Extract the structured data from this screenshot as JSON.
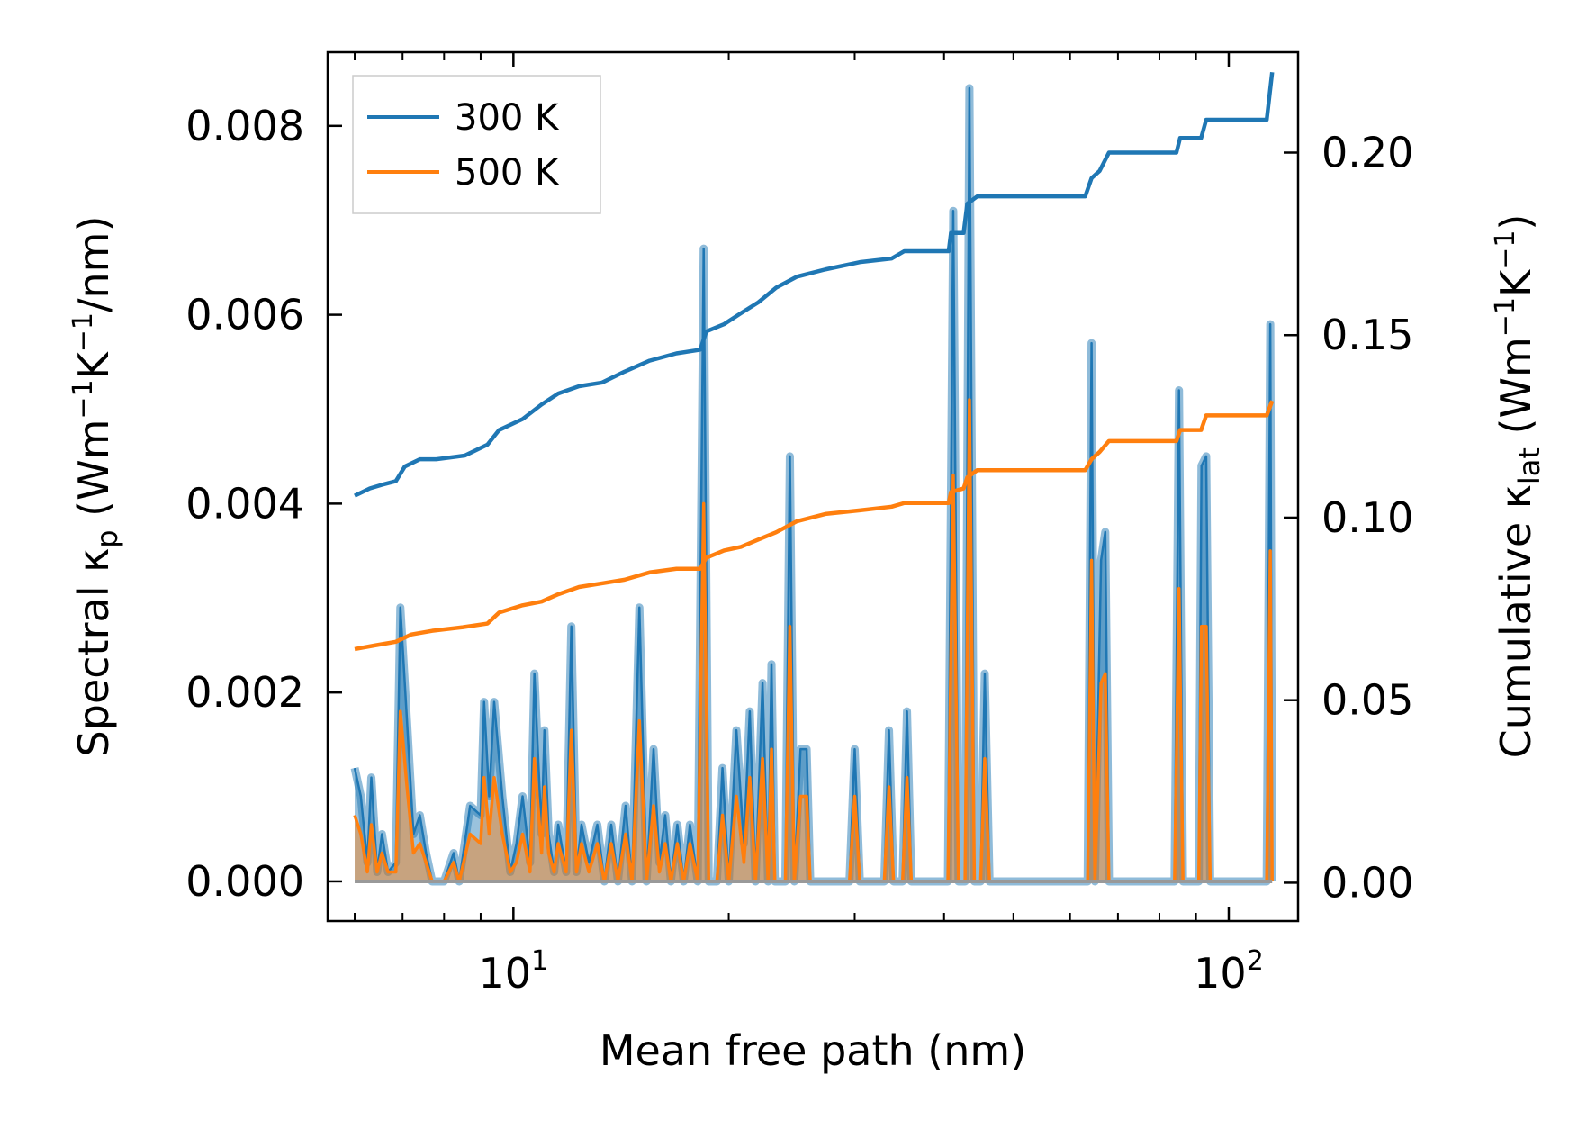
{
  "chart_data": {
    "type": "line",
    "x_scale": "log",
    "xlim": [
      5.5,
      125
    ],
    "ylim_left": [
      -0.00042,
      0.00878
    ],
    "ylim_right": [
      -0.0105,
      0.2275
    ],
    "xlabel": "Mean free path (nm)",
    "ylabel_left": {
      "prefix": "Spectral κ",
      "sub": "p",
      "mid": " (Wm",
      "sup1": "−1",
      "k": "K",
      "sup2": "−1",
      "suffix": "/nm)"
    },
    "ylabel_right": {
      "prefix": "Cumulative κ",
      "sub": "lat",
      "mid": " (Wm",
      "sup1": "−1",
      "k": "K",
      "sup2": "−1",
      "suffix": ")"
    },
    "x_ticks": [
      {
        "value": 10,
        "base": "10",
        "exp": "1"
      },
      {
        "value": 100,
        "base": "10",
        "exp": "2"
      }
    ],
    "y_left_ticks": [
      {
        "value": 0.0,
        "label": "0.000"
      },
      {
        "value": 0.002,
        "label": "0.002"
      },
      {
        "value": 0.004,
        "label": "0.004"
      },
      {
        "value": 0.006,
        "label": "0.006"
      },
      {
        "value": 0.008,
        "label": "0.008"
      }
    ],
    "y_right_ticks": [
      {
        "value": 0.0,
        "label": "0.00"
      },
      {
        "value": 0.05,
        "label": "0.05"
      },
      {
        "value": 0.1,
        "label": "0.10"
      },
      {
        "value": 0.15,
        "label": "0.15"
      },
      {
        "value": 0.2,
        "label": "0.20"
      }
    ],
    "legend": {
      "position": "top-left",
      "entries": [
        "300 K",
        "500 K"
      ]
    },
    "colors": {
      "s300": "#1f77b4",
      "s500": "#ff7f0e"
    },
    "spectral_300K": [
      [
        6.0,
        0.0012
      ],
      [
        6.12,
        0.0009
      ],
      [
        6.25,
        0.0002
      ],
      [
        6.33,
        0.0011
      ],
      [
        6.45,
        0.0001
      ],
      [
        6.55,
        0.0005
      ],
      [
        6.68,
        0.0001
      ],
      [
        6.85,
        0.0002
      ],
      [
        6.95,
        0.0029
      ],
      [
        7.1,
        0.0017
      ],
      [
        7.25,
        0.0005
      ],
      [
        7.4,
        0.0007
      ],
      [
        7.55,
        0.0003
      ],
      [
        7.7,
        0.0
      ],
      [
        8.0,
        0.0
      ],
      [
        8.25,
        0.0003
      ],
      [
        8.4,
        0.0
      ],
      [
        8.7,
        0.0008
      ],
      [
        9.0,
        0.0007
      ],
      [
        9.1,
        0.0019
      ],
      [
        9.25,
        0.0009
      ],
      [
        9.4,
        0.0019
      ],
      [
        9.65,
        0.0009
      ],
      [
        9.9,
        0.0001
      ],
      [
        10.1,
        0.0004
      ],
      [
        10.3,
        0.0009
      ],
      [
        10.55,
        0.0002
      ],
      [
        10.7,
        0.0022
      ],
      [
        10.95,
        0.0005
      ],
      [
        11.05,
        0.0016
      ],
      [
        11.2,
        0.0005
      ],
      [
        11.4,
        0.0001
      ],
      [
        11.55,
        0.0006
      ],
      [
        11.85,
        0.0001
      ],
      [
        12.05,
        0.0027
      ],
      [
        12.25,
        0.0001
      ],
      [
        12.45,
        0.0006
      ],
      [
        12.75,
        0.0002
      ],
      [
        13.1,
        0.0006
      ],
      [
        13.4,
        0.0
      ],
      [
        13.7,
        0.0006
      ],
      [
        14.0,
        0.0
      ],
      [
        14.35,
        0.0008
      ],
      [
        14.65,
        0.0
      ],
      [
        15.0,
        0.0029
      ],
      [
        15.35,
        0.0
      ],
      [
        15.7,
        0.0014
      ],
      [
        16.0,
        0.0002
      ],
      [
        16.3,
        0.0007
      ],
      [
        16.6,
        0.0
      ],
      [
        16.95,
        0.0006
      ],
      [
        17.3,
        0.0
      ],
      [
        17.65,
        0.0006
      ],
      [
        18.1,
        0.0
      ],
      [
        18.45,
        0.0067
      ],
      [
        18.75,
        0.0
      ],
      [
        19.25,
        0.0
      ],
      [
        19.6,
        0.0012
      ],
      [
        20.0,
        0.0
      ],
      [
        20.5,
        0.0016
      ],
      [
        21.0,
        0.0004
      ],
      [
        21.4,
        0.0018
      ],
      [
        21.8,
        0.0
      ],
      [
        22.3,
        0.0021
      ],
      [
        22.7,
        0.0
      ],
      [
        22.95,
        0.0023
      ],
      [
        23.2,
        0.0
      ],
      [
        24.0,
        0.0
      ],
      [
        24.35,
        0.0045
      ],
      [
        24.7,
        0.0
      ],
      [
        25.2,
        0.0014
      ],
      [
        25.7,
        0.0014
      ],
      [
        26.0,
        0.0
      ],
      [
        29.5,
        0.0
      ],
      [
        30.0,
        0.0014
      ],
      [
        30.5,
        0.0
      ],
      [
        33.0,
        0.0
      ],
      [
        33.5,
        0.0016
      ],
      [
        34.0,
        0.0
      ],
      [
        35.0,
        0.0
      ],
      [
        35.5,
        0.0018
      ],
      [
        36.0,
        0.0
      ],
      [
        40.5,
        0.0
      ],
      [
        41.2,
        0.0071
      ],
      [
        41.9,
        0.0
      ],
      [
        42.8,
        0.0
      ],
      [
        43.4,
        0.0084
      ],
      [
        44.1,
        0.0
      ],
      [
        45.0,
        0.0
      ],
      [
        45.6,
        0.0022
      ],
      [
        46.3,
        0.0
      ],
      [
        63.5,
        0.0
      ],
      [
        64.3,
        0.0057
      ],
      [
        65.0,
        0.0
      ],
      [
        66.3,
        0.0034
      ],
      [
        67.2,
        0.0037
      ],
      [
        68.0,
        0.0
      ],
      [
        84.0,
        0.0
      ],
      [
        85.2,
        0.0052
      ],
      [
        86.3,
        0.0
      ],
      [
        90.8,
        0.0
      ],
      [
        91.6,
        0.0044
      ],
      [
        93.0,
        0.0045
      ],
      [
        94.2,
        0.0
      ],
      [
        113.0,
        0.0
      ],
      [
        114.3,
        0.0059
      ],
      [
        115.0,
        0.0
      ]
    ],
    "spectral_500K": [
      [
        6.0,
        0.0007
      ],
      [
        6.12,
        0.0005
      ],
      [
        6.25,
        0.0001
      ],
      [
        6.33,
        0.0006
      ],
      [
        6.45,
        0.0001
      ],
      [
        6.55,
        0.0003
      ],
      [
        6.68,
        0.0001
      ],
      [
        6.85,
        0.0001
      ],
      [
        6.95,
        0.0018
      ],
      [
        7.1,
        0.001
      ],
      [
        7.25,
        0.0003
      ],
      [
        7.4,
        0.0004
      ],
      [
        7.55,
        0.0002
      ],
      [
        7.7,
        0.0
      ],
      [
        8.0,
        0.0
      ],
      [
        8.25,
        0.0002
      ],
      [
        8.4,
        0.0
      ],
      [
        8.7,
        0.0005
      ],
      [
        9.0,
        0.0004
      ],
      [
        9.1,
        0.0011
      ],
      [
        9.25,
        0.0005
      ],
      [
        9.4,
        0.0011
      ],
      [
        9.65,
        0.0005
      ],
      [
        9.9,
        0.0001
      ],
      [
        10.1,
        0.0002
      ],
      [
        10.3,
        0.0005
      ],
      [
        10.55,
        0.0001
      ],
      [
        10.7,
        0.0013
      ],
      [
        10.95,
        0.0003
      ],
      [
        11.05,
        0.001
      ],
      [
        11.2,
        0.0003
      ],
      [
        11.4,
        0.0001
      ],
      [
        11.55,
        0.0004
      ],
      [
        11.85,
        0.0001
      ],
      [
        12.05,
        0.0016
      ],
      [
        12.25,
        0.0001
      ],
      [
        12.45,
        0.0004
      ],
      [
        12.75,
        0.0001
      ],
      [
        13.1,
        0.0004
      ],
      [
        13.4,
        0.0
      ],
      [
        13.7,
        0.0004
      ],
      [
        14.0,
        0.0
      ],
      [
        14.35,
        0.0005
      ],
      [
        14.65,
        0.0
      ],
      [
        15.0,
        0.0017
      ],
      [
        15.35,
        0.0
      ],
      [
        15.7,
        0.0008
      ],
      [
        16.0,
        0.0001
      ],
      [
        16.3,
        0.0004
      ],
      [
        16.6,
        0.0
      ],
      [
        16.95,
        0.0004
      ],
      [
        17.3,
        0.0
      ],
      [
        17.65,
        0.0004
      ],
      [
        18.1,
        0.0
      ],
      [
        18.45,
        0.004
      ],
      [
        18.75,
        0.0
      ],
      [
        19.25,
        0.0
      ],
      [
        19.6,
        0.0007
      ],
      [
        20.0,
        0.0
      ],
      [
        20.5,
        0.0009
      ],
      [
        21.0,
        0.0002
      ],
      [
        21.4,
        0.0011
      ],
      [
        21.8,
        0.0
      ],
      [
        22.3,
        0.0013
      ],
      [
        22.7,
        0.0
      ],
      [
        22.95,
        0.0014
      ],
      [
        23.2,
        0.0
      ],
      [
        24.0,
        0.0
      ],
      [
        24.35,
        0.0027
      ],
      [
        24.7,
        0.0
      ],
      [
        25.2,
        0.0009
      ],
      [
        25.7,
        0.0009
      ],
      [
        26.0,
        0.0
      ],
      [
        29.5,
        0.0
      ],
      [
        30.0,
        0.0009
      ],
      [
        30.5,
        0.0
      ],
      [
        33.0,
        0.0
      ],
      [
        33.5,
        0.001
      ],
      [
        34.0,
        0.0
      ],
      [
        35.0,
        0.0
      ],
      [
        35.5,
        0.0011
      ],
      [
        36.0,
        0.0
      ],
      [
        40.5,
        0.0
      ],
      [
        41.2,
        0.0043
      ],
      [
        41.9,
        0.0
      ],
      [
        42.8,
        0.0
      ],
      [
        43.4,
        0.0051
      ],
      [
        44.1,
        0.0
      ],
      [
        45.0,
        0.0
      ],
      [
        45.6,
        0.0013
      ],
      [
        46.3,
        0.0
      ],
      [
        63.5,
        0.0
      ],
      [
        64.3,
        0.0034
      ],
      [
        65.0,
        0.0
      ],
      [
        66.3,
        0.0021
      ],
      [
        67.2,
        0.0022
      ],
      [
        68.0,
        0.0
      ],
      [
        84.0,
        0.0
      ],
      [
        85.2,
        0.0031
      ],
      [
        86.3,
        0.0
      ],
      [
        90.8,
        0.0
      ],
      [
        91.6,
        0.0027
      ],
      [
        93.0,
        0.0027
      ],
      [
        94.2,
        0.0
      ],
      [
        113.0,
        0.0
      ],
      [
        114.3,
        0.0035
      ],
      [
        115.0,
        0.0
      ]
    ],
    "cumulative_300K": [
      [
        6.0,
        0.106
      ],
      [
        6.3,
        0.108
      ],
      [
        6.55,
        0.109
      ],
      [
        6.85,
        0.11
      ],
      [
        7.05,
        0.114
      ],
      [
        7.4,
        0.116
      ],
      [
        7.8,
        0.116
      ],
      [
        8.55,
        0.117
      ],
      [
        9.2,
        0.12
      ],
      [
        9.55,
        0.124
      ],
      [
        10.3,
        0.127
      ],
      [
        10.95,
        0.131
      ],
      [
        11.55,
        0.134
      ],
      [
        12.35,
        0.136
      ],
      [
        13.3,
        0.137
      ],
      [
        14.3,
        0.14
      ],
      [
        15.5,
        0.143
      ],
      [
        16.9,
        0.145
      ],
      [
        18.25,
        0.146
      ],
      [
        18.6,
        0.151
      ],
      [
        19.7,
        0.153
      ],
      [
        20.8,
        0.156
      ],
      [
        22.0,
        0.159
      ],
      [
        23.3,
        0.163
      ],
      [
        24.9,
        0.166
      ],
      [
        27.3,
        0.168
      ],
      [
        30.5,
        0.17
      ],
      [
        33.8,
        0.171
      ],
      [
        35.2,
        0.173
      ],
      [
        40.6,
        0.173
      ],
      [
        40.9,
        0.178
      ],
      [
        42.6,
        0.178
      ],
      [
        43.1,
        0.186
      ],
      [
        44.5,
        0.188
      ],
      [
        46.0,
        0.188
      ],
      [
        63.0,
        0.188
      ],
      [
        64.3,
        0.193
      ],
      [
        66.0,
        0.195
      ],
      [
        68.0,
        0.2
      ],
      [
        84.5,
        0.2
      ],
      [
        85.5,
        0.204
      ],
      [
        91.5,
        0.204
      ],
      [
        93.0,
        0.209
      ],
      [
        113.0,
        0.209
      ],
      [
        115.0,
        0.222
      ]
    ],
    "cumulative_500K": [
      [
        6.0,
        0.064
      ],
      [
        6.4,
        0.065
      ],
      [
        6.85,
        0.066
      ],
      [
        7.2,
        0.068
      ],
      [
        7.7,
        0.069
      ],
      [
        8.5,
        0.07
      ],
      [
        9.2,
        0.071
      ],
      [
        9.55,
        0.074
      ],
      [
        10.3,
        0.076
      ],
      [
        10.95,
        0.077
      ],
      [
        11.55,
        0.079
      ],
      [
        12.35,
        0.081
      ],
      [
        13.3,
        0.082
      ],
      [
        14.3,
        0.083
      ],
      [
        15.5,
        0.085
      ],
      [
        16.9,
        0.086
      ],
      [
        18.25,
        0.086
      ],
      [
        18.6,
        0.089
      ],
      [
        19.7,
        0.091
      ],
      [
        20.8,
        0.092
      ],
      [
        22.0,
        0.094
      ],
      [
        23.3,
        0.096
      ],
      [
        24.9,
        0.099
      ],
      [
        27.3,
        0.101
      ],
      [
        30.5,
        0.102
      ],
      [
        33.8,
        0.103
      ],
      [
        35.2,
        0.104
      ],
      [
        40.6,
        0.104
      ],
      [
        40.9,
        0.107
      ],
      [
        42.6,
        0.108
      ],
      [
        43.1,
        0.111
      ],
      [
        44.5,
        0.113
      ],
      [
        46.0,
        0.113
      ],
      [
        63.0,
        0.113
      ],
      [
        64.3,
        0.116
      ],
      [
        66.0,
        0.118
      ],
      [
        68.0,
        0.121
      ],
      [
        84.5,
        0.121
      ],
      [
        85.5,
        0.124
      ],
      [
        91.5,
        0.124
      ],
      [
        93.0,
        0.128
      ],
      [
        113.0,
        0.128
      ],
      [
        115.0,
        0.132
      ]
    ]
  }
}
